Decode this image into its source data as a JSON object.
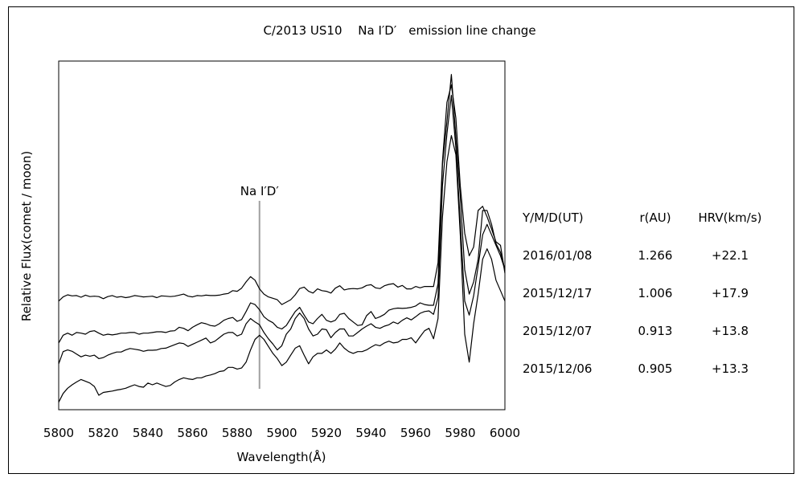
{
  "chart_data": {
    "type": "line",
    "title": "C/2013 US10　 Na I′D′　emission line change",
    "xlabel": "Wavelength(Å)",
    "ylabel": "Relative Flux(comet / moon)",
    "xlim": [
      5800,
      6000
    ],
    "x_ticks": [
      "5800",
      "5820",
      "5840",
      "5860",
      "5880",
      "5900",
      "5920",
      "5940",
      "5960",
      "5980",
      "6000"
    ],
    "grid": false,
    "y_tick_labels": false,
    "annotation": {
      "text": "Na I′D′",
      "x": 5890
    },
    "series": [
      {
        "x": [
          5800,
          5802,
          5804,
          5806,
          5808,
          5810,
          5812,
          5814,
          5816,
          5818,
          5820,
          5822,
          5824,
          5826,
          5828,
          5830,
          5832,
          5834,
          5836,
          5838,
          5840,
          5842,
          5844,
          5846,
          5848,
          5850,
          5852,
          5854,
          5856,
          5858,
          5860,
          5862,
          5864,
          5866,
          5868,
          5870,
          5872,
          5874,
          5876,
          5878,
          5880,
          5882,
          5884,
          5886,
          5888,
          5890,
          5892,
          5894,
          5896,
          5898,
          5900,
          5902,
          5904,
          5906,
          5908,
          5910,
          5912,
          5914,
          5916,
          5918,
          5920,
          5922,
          5924,
          5926,
          5928,
          5930,
          5932,
          5934,
          5936,
          5938,
          5940,
          5942,
          5944,
          5946,
          5948,
          5950,
          5952,
          5954,
          5956,
          5958,
          5960,
          5962,
          5964,
          5966,
          5968,
          5970,
          5972,
          5974,
          5976,
          5978,
          5980,
          5982,
          5984,
          5986,
          5988,
          5990,
          5992,
          5994,
          5996,
          5998,
          6000
        ],
        "values": [
          3.0,
          3.12,
          3.18,
          3.15,
          3.16,
          3.11,
          3.17,
          3.13,
          3.14,
          3.13,
          3.07,
          3.13,
          3.16,
          3.11,
          3.13,
          3.1,
          3.12,
          3.16,
          3.14,
          3.12,
          3.13,
          3.14,
          3.1,
          3.15,
          3.14,
          3.13,
          3.14,
          3.17,
          3.2,
          3.14,
          3.12,
          3.16,
          3.15,
          3.17,
          3.16,
          3.16,
          3.17,
          3.2,
          3.22,
          3.3,
          3.28,
          3.37,
          3.55,
          3.7,
          3.6,
          3.35,
          3.2,
          3.12,
          3.08,
          3.04,
          2.9,
          2.97,
          3.04,
          3.18,
          3.36,
          3.4,
          3.28,
          3.23,
          3.35,
          3.3,
          3.28,
          3.23,
          3.37,
          3.44,
          3.32,
          3.35,
          3.36,
          3.35,
          3.38,
          3.45,
          3.47,
          3.38,
          3.36,
          3.44,
          3.48,
          3.5,
          3.4,
          3.45,
          3.35,
          3.35,
          3.42,
          3.38,
          3.42,
          3.42,
          3.42,
          4.1,
          7.0,
          8.7,
          9.2,
          8.25,
          6.3,
          4.95,
          4.3,
          4.55,
          5.6,
          5.72,
          5.42,
          5.07,
          4.7,
          4.6,
          3.8
        ]
      },
      {
        "x": [
          5800,
          5802,
          5804,
          5806,
          5808,
          5810,
          5812,
          5814,
          5816,
          5818,
          5820,
          5822,
          5824,
          5826,
          5828,
          5830,
          5832,
          5834,
          5836,
          5838,
          5840,
          5842,
          5844,
          5846,
          5848,
          5850,
          5852,
          5854,
          5856,
          5858,
          5860,
          5862,
          5864,
          5866,
          5868,
          5870,
          5872,
          5874,
          5876,
          5878,
          5880,
          5882,
          5884,
          5886,
          5888,
          5890,
          5892,
          5894,
          5896,
          5898,
          5900,
          5902,
          5904,
          5906,
          5908,
          5910,
          5912,
          5914,
          5916,
          5918,
          5920,
          5922,
          5924,
          5926,
          5928,
          5930,
          5932,
          5934,
          5936,
          5938,
          5940,
          5942,
          5944,
          5946,
          5948,
          5950,
          5952,
          5954,
          5956,
          5958,
          5960,
          5962,
          5964,
          5966,
          5968,
          5970,
          5972,
          5974,
          5976,
          5978,
          5980,
          5982,
          5984,
          5986,
          5988,
          5990,
          5992,
          5994,
          5996,
          5998,
          6000
        ],
        "values": [
          1.8,
          2.02,
          2.08,
          2.02,
          2.1,
          2.08,
          2.05,
          2.13,
          2.15,
          2.08,
          2.02,
          2.05,
          2.03,
          2.05,
          2.08,
          2.08,
          2.1,
          2.1,
          2.05,
          2.08,
          2.08,
          2.1,
          2.12,
          2.12,
          2.1,
          2.14,
          2.15,
          2.25,
          2.22,
          2.15,
          2.25,
          2.32,
          2.38,
          2.35,
          2.3,
          2.28,
          2.35,
          2.45,
          2.5,
          2.53,
          2.42,
          2.47,
          2.7,
          2.95,
          2.9,
          2.75,
          2.55,
          2.45,
          2.38,
          2.25,
          2.2,
          2.3,
          2.5,
          2.7,
          2.82,
          2.6,
          2.4,
          2.35,
          2.5,
          2.62,
          2.45,
          2.4,
          2.45,
          2.62,
          2.65,
          2.5,
          2.4,
          2.3,
          2.32,
          2.58,
          2.7,
          2.5,
          2.55,
          2.62,
          2.74,
          2.78,
          2.8,
          2.79,
          2.8,
          2.82,
          2.86,
          2.95,
          2.9,
          2.88,
          2.88,
          3.5,
          6.9,
          8.15,
          9.5,
          7.7,
          6.0,
          3.9,
          3.2,
          3.55,
          4.2,
          5.6,
          5.6,
          5.2,
          4.65,
          4.4,
          3.9
        ]
      },
      {
        "x": [
          5800,
          5802,
          5804,
          5806,
          5808,
          5810,
          5812,
          5814,
          5816,
          5818,
          5820,
          5822,
          5824,
          5826,
          5828,
          5830,
          5832,
          5834,
          5836,
          5838,
          5840,
          5842,
          5844,
          5846,
          5848,
          5850,
          5852,
          5854,
          5856,
          5858,
          5860,
          5862,
          5864,
          5866,
          5868,
          5870,
          5872,
          5874,
          5876,
          5878,
          5880,
          5882,
          5884,
          5886,
          5888,
          5890,
          5892,
          5894,
          5896,
          5898,
          5900,
          5902,
          5904,
          5906,
          5908,
          5910,
          5912,
          5914,
          5916,
          5918,
          5920,
          5922,
          5924,
          5926,
          5928,
          5930,
          5932,
          5934,
          5936,
          5938,
          5940,
          5942,
          5944,
          5946,
          5948,
          5950,
          5952,
          5954,
          5956,
          5958,
          5960,
          5962,
          5964,
          5966,
          5968,
          5970,
          5972,
          5974,
          5976,
          5978,
          5980,
          5982,
          5984,
          5986,
          5988,
          5990,
          5992,
          5994,
          5996,
          5998,
          6000
        ],
        "values": [
          1.2,
          1.55,
          1.6,
          1.56,
          1.48,
          1.4,
          1.45,
          1.42,
          1.45,
          1.35,
          1.38,
          1.45,
          1.5,
          1.54,
          1.54,
          1.6,
          1.64,
          1.62,
          1.6,
          1.56,
          1.59,
          1.59,
          1.6,
          1.64,
          1.65,
          1.7,
          1.75,
          1.8,
          1.78,
          1.7,
          1.76,
          1.82,
          1.88,
          1.94,
          1.8,
          1.85,
          1.95,
          2.05,
          2.1,
          2.1,
          2.0,
          2.05,
          2.35,
          2.5,
          2.4,
          2.32,
          2.1,
          1.92,
          1.77,
          1.6,
          1.72,
          2.05,
          2.2,
          2.5,
          2.66,
          2.5,
          2.2,
          2.0,
          2.05,
          2.2,
          2.18,
          1.95,
          2.1,
          2.2,
          2.2,
          2.0,
          2.0,
          2.1,
          2.2,
          2.28,
          2.35,
          2.25,
          2.22,
          2.28,
          2.32,
          2.4,
          2.35,
          2.45,
          2.52,
          2.46,
          2.55,
          2.65,
          2.7,
          2.72,
          2.62,
          3.1,
          6.3,
          7.8,
          8.9,
          7.4,
          5.25,
          3.0,
          2.6,
          3.15,
          4.0,
          4.9,
          5.2,
          4.9,
          4.6,
          4.3,
          3.9
        ]
      },
      {
        "x": [
          5800,
          5802,
          5804,
          5806,
          5808,
          5810,
          5812,
          5814,
          5816,
          5818,
          5820,
          5822,
          5824,
          5826,
          5828,
          5830,
          5832,
          5834,
          5836,
          5838,
          5840,
          5842,
          5844,
          5846,
          5848,
          5850,
          5852,
          5854,
          5856,
          5858,
          5860,
          5862,
          5864,
          5866,
          5868,
          5870,
          5872,
          5874,
          5876,
          5878,
          5880,
          5882,
          5884,
          5886,
          5888,
          5890,
          5892,
          5894,
          5896,
          5898,
          5900,
          5902,
          5904,
          5906,
          5908,
          5910,
          5912,
          5914,
          5916,
          5918,
          5920,
          5922,
          5924,
          5926,
          5928,
          5930,
          5932,
          5934,
          5936,
          5938,
          5940,
          5942,
          5944,
          5946,
          5948,
          5950,
          5952,
          5954,
          5956,
          5958,
          5960,
          5962,
          5964,
          5966,
          5968,
          5970,
          5972,
          5974,
          5976,
          5978,
          5980,
          5982,
          5984,
          5986,
          5988,
          5990,
          5992,
          5994,
          5996,
          5998,
          6000
        ],
        "values": [
          0.1,
          0.35,
          0.5,
          0.6,
          0.68,
          0.75,
          0.7,
          0.65,
          0.55,
          0.3,
          0.38,
          0.4,
          0.42,
          0.45,
          0.47,
          0.5,
          0.55,
          0.6,
          0.55,
          0.53,
          0.65,
          0.6,
          0.65,
          0.6,
          0.55,
          0.58,
          0.68,
          0.75,
          0.8,
          0.77,
          0.75,
          0.8,
          0.8,
          0.85,
          0.88,
          0.92,
          0.98,
          1.0,
          1.1,
          1.1,
          1.05,
          1.08,
          1.25,
          1.6,
          1.9,
          2.02,
          1.9,
          1.7,
          1.5,
          1.35,
          1.15,
          1.25,
          1.45,
          1.65,
          1.72,
          1.45,
          1.2,
          1.4,
          1.5,
          1.5,
          1.6,
          1.5,
          1.62,
          1.8,
          1.65,
          1.55,
          1.5,
          1.55,
          1.55,
          1.6,
          1.68,
          1.75,
          1.72,
          1.8,
          1.85,
          1.8,
          1.82,
          1.9,
          1.9,
          1.95,
          1.8,
          1.98,
          2.15,
          2.22,
          1.92,
          2.5,
          5.4,
          7.0,
          7.75,
          7.2,
          4.9,
          2.05,
          1.25,
          2.35,
          3.2,
          4.2,
          4.5,
          4.2,
          3.6,
          3.3,
          3.0
        ]
      }
    ],
    "table": {
      "headers": [
        "Y/M/D(UT)",
        "r(AU)",
        "HRV(km/s)"
      ],
      "rows": [
        [
          "2016/01/08",
          "1.266",
          "+22.1"
        ],
        [
          "2015/12/17",
          "1.006",
          "+17.9"
        ],
        [
          "2015/12/07",
          "0.913",
          "+13.8"
        ],
        [
          "2015/12/06",
          "0.905",
          "+13.3"
        ]
      ]
    },
    "colors": {
      "lines": "#000000",
      "annotation_line": "#a0a0a0",
      "frame": "#000000"
    }
  }
}
